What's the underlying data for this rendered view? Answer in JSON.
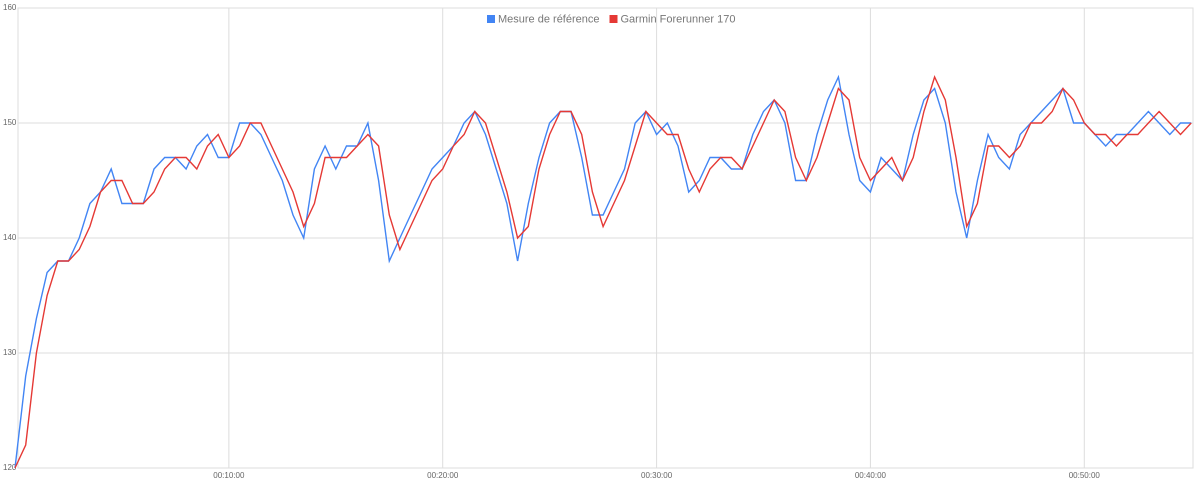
{
  "chart_data": {
    "type": "line",
    "x": [
      0,
      30,
      60,
      90,
      120,
      150,
      180,
      210,
      240,
      270,
      300,
      330,
      360,
      390,
      420,
      450,
      480,
      510,
      540,
      570,
      600,
      630,
      660,
      690,
      720,
      750,
      780,
      810,
      840,
      870,
      900,
      930,
      960,
      990,
      1020,
      1050,
      1080,
      1110,
      1140,
      1170,
      1200,
      1230,
      1260,
      1290,
      1320,
      1350,
      1380,
      1410,
      1440,
      1470,
      1500,
      1530,
      1560,
      1590,
      1620,
      1650,
      1680,
      1710,
      1740,
      1770,
      1800,
      1830,
      1860,
      1890,
      1920,
      1950,
      1980,
      2010,
      2040,
      2070,
      2100,
      2130,
      2160,
      2190,
      2220,
      2250,
      2280,
      2310,
      2340,
      2370,
      2400,
      2430,
      2460,
      2490,
      2520,
      2550,
      2580,
      2610,
      2640,
      2670,
      2700,
      2730,
      2760,
      2790,
      2820,
      2850,
      2880,
      2910,
      2940,
      2970,
      3000,
      3030,
      3060,
      3090,
      3120,
      3150,
      3180,
      3210,
      3240,
      3270,
      3300
    ],
    "series": [
      {
        "name": "Mesure de référence",
        "color": "#4285f4",
        "values": [
          120,
          128,
          133,
          137,
          138,
          138,
          140,
          143,
          144,
          146,
          143,
          143,
          143,
          146,
          147,
          147,
          146,
          148,
          149,
          147,
          147,
          150,
          150,
          149,
          147,
          145,
          142,
          140,
          146,
          148,
          146,
          148,
          148,
          150,
          145,
          138,
          140,
          142,
          144,
          146,
          147,
          148,
          150,
          151,
          149,
          146,
          143,
          138,
          143,
          147,
          150,
          151,
          151,
          147,
          142,
          142,
          144,
          146,
          150,
          151,
          149,
          150,
          148,
          144,
          145,
          147,
          147,
          146,
          146,
          149,
          151,
          152,
          150,
          145,
          145,
          149,
          152,
          154,
          149,
          145,
          144,
          147,
          146,
          145,
          149,
          152,
          153,
          150,
          144,
          140,
          145,
          149,
          147,
          146,
          149,
          150,
          151,
          152,
          153,
          150,
          150,
          149,
          148,
          149,
          149,
          150,
          151,
          150,
          149,
          150,
          150
        ]
      },
      {
        "name": "Garmin Forerunner 170",
        "color": "#e53935",
        "values": [
          120,
          122,
          130,
          135,
          138,
          138,
          139,
          141,
          144,
          145,
          145,
          143,
          143,
          144,
          146,
          147,
          147,
          146,
          148,
          149,
          147,
          148,
          150,
          150,
          148,
          146,
          144,
          141,
          143,
          147,
          147,
          147,
          148,
          149,
          148,
          142,
          139,
          141,
          143,
          145,
          146,
          148,
          149,
          151,
          150,
          147,
          144,
          140,
          141,
          146,
          149,
          151,
          151,
          149,
          144,
          141,
          143,
          145,
          148,
          151,
          150,
          149,
          149,
          146,
          144,
          146,
          147,
          147,
          146,
          148,
          150,
          152,
          151,
          147,
          145,
          147,
          150,
          153,
          152,
          147,
          145,
          146,
          147,
          145,
          147,
          151,
          154,
          152,
          147,
          141,
          143,
          148,
          148,
          147,
          148,
          150,
          150,
          151,
          153,
          152,
          150,
          149,
          149,
          148,
          149,
          149,
          150,
          151,
          150,
          149,
          150
        ]
      }
    ],
    "xlim": [
      0,
      3305
    ],
    "xticks": [
      {
        "value": 600,
        "label": "00:10:00"
      },
      {
        "value": 1200,
        "label": "00:20:00"
      },
      {
        "value": 1800,
        "label": "00:30:00"
      },
      {
        "value": 2400,
        "label": "00:40:00"
      },
      {
        "value": 3000,
        "label": "00:50:00"
      }
    ],
    "ylim": [
      120,
      160
    ],
    "yticks": [
      120,
      130,
      140,
      150,
      160
    ],
    "grid": true,
    "legend": "top"
  }
}
